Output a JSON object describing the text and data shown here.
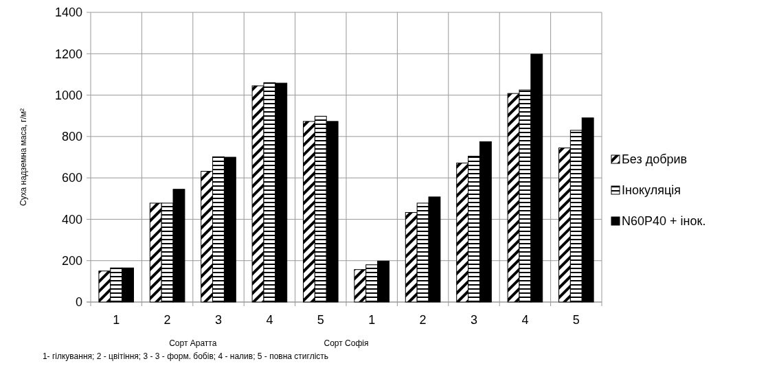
{
  "chart_data": {
    "type": "bar",
    "ylabel": "Суха надземна маса, г/м²",
    "categories": [
      "1",
      "2",
      "3",
      "4",
      "5",
      "1",
      "2",
      "3",
      "4",
      "5"
    ],
    "series": [
      {
        "name": "Без добрив",
        "color": "#000000",
        "values": [
          150,
          478,
          632,
          1045,
          873,
          157,
          433,
          672,
          1008,
          745
        ]
      },
      {
        "name": "Інокуляція",
        "color": "#000000",
        "values": [
          165,
          478,
          702,
          1060,
          898,
          180,
          478,
          705,
          1025,
          830
        ]
      },
      {
        "name": "N60P40 + інок.",
        "color": "#000000",
        "values": [
          165,
          545,
          700,
          1058,
          873,
          198,
          508,
          775,
          1198,
          890
        ]
      }
    ],
    "ylim": [
      0,
      1400
    ],
    "yticks": [
      0,
      200,
      400,
      600,
      800,
      1000,
      1200,
      1400
    ],
    "grid": true,
    "legend": "right",
    "annotations": [
      "Сорт Аратта",
      "Сорт Софія",
      "1- гілкування; 2 - цвітіння; 3 - 3 - форм. бобів; 4 - налив; 5 - повна стиглість"
    ]
  }
}
